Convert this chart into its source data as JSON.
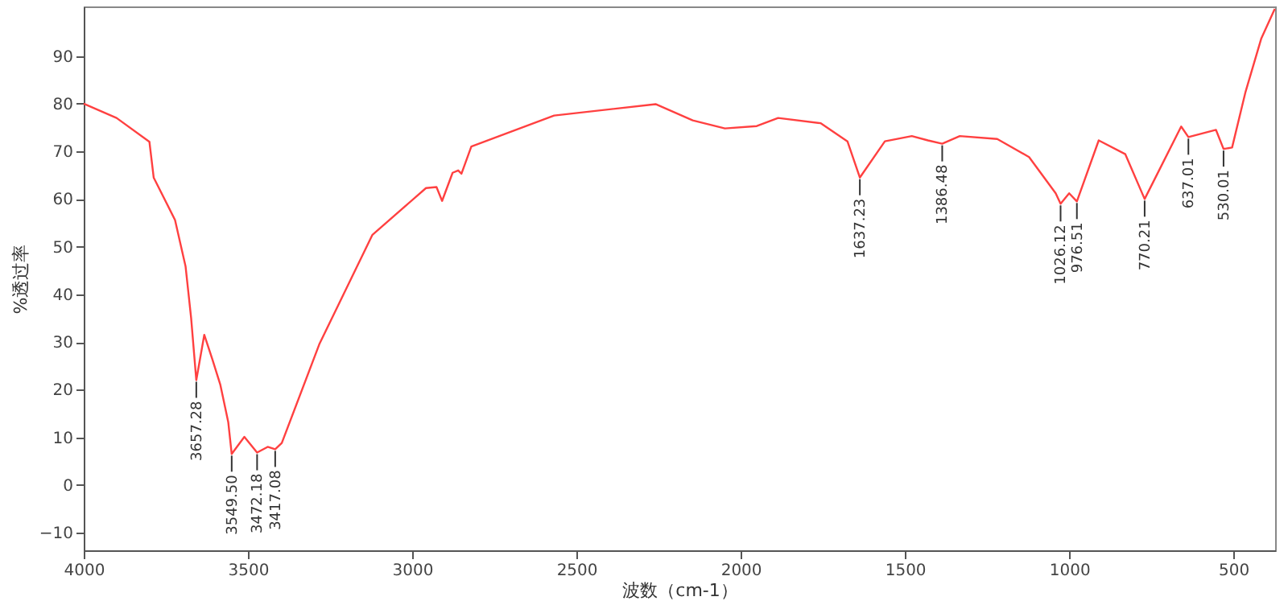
{
  "chart_data": {
    "type": "line",
    "xlabel": "波数（cm-1）",
    "ylabel": "%透过率",
    "x": [
      4000,
      3900,
      3800,
      3787,
      3722,
      3690,
      3673,
      3657.28,
      3633,
      3608,
      3584,
      3560,
      3549.5,
      3511,
      3472.18,
      3440,
      3417.08,
      3397,
      3283,
      3121,
      2958,
      2926,
      2909,
      2877,
      2860,
      2850,
      2820,
      2568,
      2259,
      2146,
      2048,
      1951,
      1886,
      1756,
      1675,
      1637.23,
      1561,
      1479,
      1430,
      1386.48,
      1333,
      1219,
      1122,
      1041,
      1026.12,
      1000,
      976.51,
      910,
      829,
      770.21,
      659,
      637.01,
      553,
      530.01,
      504,
      463,
      415,
      374
    ],
    "series": [
      {
        "color": "#ff4040",
        "values": [
          80,
          77,
          72,
          64.5,
          55.6,
          45.9,
          35,
          22,
          31.5,
          26.3,
          21,
          13.2,
          6.5,
          10.1,
          6.8,
          8,
          7.5,
          8.8,
          29.5,
          52.5,
          62.3,
          62.5,
          59.6,
          65.5,
          66,
          65.3,
          71,
          77.5,
          79.9,
          76.5,
          74.8,
          75.3,
          77,
          75.9,
          72.1,
          64.5,
          72.1,
          73.2,
          72.3,
          71.6,
          73.2,
          72.6,
          68.8,
          61.2,
          59,
          61.2,
          59.5,
          72.3,
          69.4,
          60,
          75.2,
          73,
          74.5,
          70.5,
          70.8,
          82.5,
          93.7,
          99.9
        ]
      }
    ],
    "xlim": [
      4000,
      373
    ],
    "ylim": [
      -13.7,
      100.4
    ],
    "xticks": [
      4000,
      3500,
      3000,
      2500,
      2000,
      1500,
      1000,
      500
    ],
    "yticks": [
      -10,
      0,
      10,
      20,
      30,
      40,
      50,
      60,
      70,
      80,
      90
    ],
    "marker": "none",
    "line_style": "solid",
    "annotations": [
      {
        "text": "3657.28",
        "x": 3657.28,
        "y": 22
      },
      {
        "text": "3549.50",
        "x": 3549.5,
        "y": 6.5
      },
      {
        "text": "3472.18",
        "x": 3472.18,
        "y": 6.8
      },
      {
        "text": "3417.08",
        "x": 3417.08,
        "y": 7.5
      },
      {
        "text": "1637.23",
        "x": 1637.23,
        "y": 64.5
      },
      {
        "text": "1386.48",
        "x": 1386.48,
        "y": 71.6
      },
      {
        "text": "1026.12",
        "x": 1026.12,
        "y": 59
      },
      {
        "text": "976.51",
        "x": 976.51,
        "y": 59.5
      },
      {
        "text": "770.21",
        "x": 770.21,
        "y": 60
      },
      {
        "text": "637.01",
        "x": 637.01,
        "y": 73
      },
      {
        "text": "530.01",
        "x": 530.01,
        "y": 70.5
      }
    ]
  }
}
